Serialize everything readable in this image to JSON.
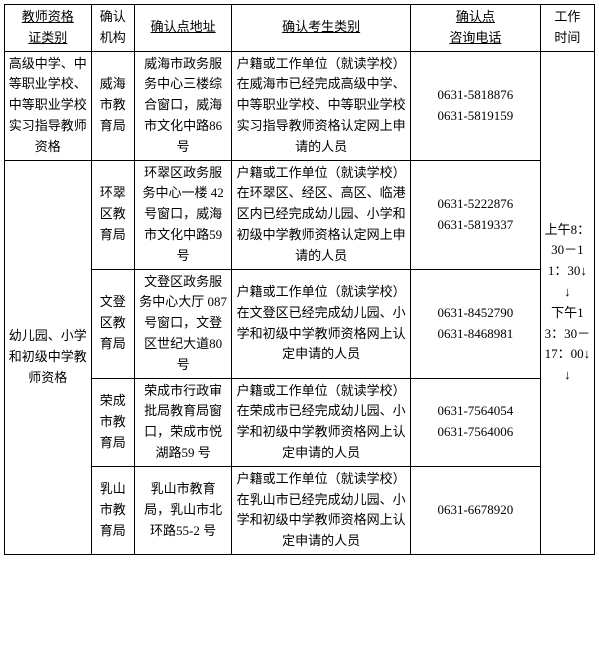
{
  "header": {
    "c1a": "教师资格",
    "c1b": "证类别",
    "c2a": "确认",
    "c2b": "机构",
    "c3": "确认点地址",
    "c4": "确认考生类别",
    "c5a": "确认点",
    "c5b": "咨询电话",
    "c6a": "工作",
    "c6b": "时间"
  },
  "rows": [
    {
      "category": "高级中学、中等职业学校、中等职业学校实习指导教师资格",
      "org": "威海市教育局",
      "address": "威海市政务服务中心三楼综合窗口，威海市文化中路86 号",
      "candidate": "户籍或工作单位（就读学校）在威海市已经完成高级中学、中等职业学校、中等职业学校实习指导教师资格认定网上申请的人员",
      "phone": "0631-5818876\n0631-5819159"
    },
    {
      "org": "环翠区教育局",
      "address": "环翠区政务服务中心一楼 42 号窗口，威海市文化中路59 号",
      "candidate": "户籍或工作单位（就读学校）在环翠区、经区、高区、临港区内已经完成幼儿园、小学和初级中学教师资格认定网上申请的人员",
      "phone": "0631-5222876\n0631-5819337"
    },
    {
      "org": "文登区教育局",
      "address": "文登区政务服务中心大厅 087 号窗口，文登区世纪大道80 号",
      "candidate": "户籍或工作单位（就读学校）在文登区已经完成幼儿园、小学和初级中学教师资格网上认定申请的人员",
      "phone": "0631-8452790\n0631-8468981"
    },
    {
      "org": "荣成市教育局",
      "address": "荣成市行政审批局教育局窗口，荣成市悦湖路59 号",
      "candidate": "户籍或工作单位（就读学校）在荣成市已经完成幼儿园、小学和初级中学教师资格网上认定申请的人员",
      "phone": "0631-7564054\n0631-7564006"
    },
    {
      "org": "乳山市教育局",
      "address": "乳山市教育局，乳山市北环路55-2 号",
      "candidate": "户籍或工作单位（就读学校）在乳山市已经完成幼儿园、小学和初级中学教师资格网上认定申请的人员",
      "phone": "0631-6678920"
    }
  ],
  "category2": "幼儿园、小学和初级中学教师资格",
  "worktime": "上午8：30－11：30↓\n↓\n下午13：30－17：00↓\n↓"
}
